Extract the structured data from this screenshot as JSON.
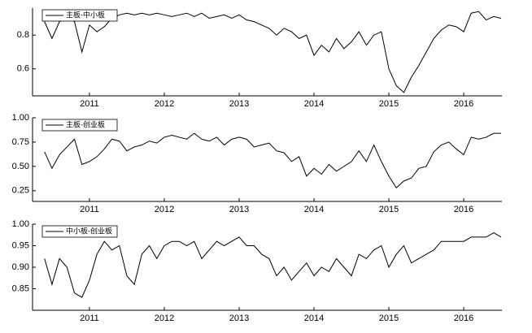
{
  "chart_data": [
    {
      "type": "line",
      "legend": "upper left",
      "grid": false,
      "x": [
        2010.4,
        2010.5,
        2010.6,
        2010.7,
        2010.8,
        2010.9,
        2011.0,
        2011.1,
        2011.2,
        2011.3,
        2011.4,
        2011.5,
        2011.6,
        2011.7,
        2011.8,
        2011.9,
        2012.0,
        2012.1,
        2012.2,
        2012.3,
        2012.4,
        2012.5,
        2012.6,
        2012.7,
        2012.8,
        2012.9,
        2013.0,
        2013.1,
        2013.2,
        2013.3,
        2013.4,
        2013.5,
        2013.6,
        2013.7,
        2013.8,
        2013.9,
        2014.0,
        2014.1,
        2014.2,
        2014.3,
        2014.4,
        2014.5,
        2014.6,
        2014.7,
        2014.8,
        2014.9,
        2015.0,
        2015.1,
        2015.2,
        2015.3,
        2015.4,
        2015.5,
        2015.6,
        2015.7,
        2015.8,
        2015.9,
        2016.0,
        2016.1,
        2016.2,
        2016.3,
        2016.4,
        2016.5
      ],
      "series": [
        {
          "name": "主板-中小板",
          "color": "#000000",
          "values": [
            0.88,
            0.78,
            0.88,
            0.9,
            0.88,
            0.7,
            0.86,
            0.82,
            0.85,
            0.9,
            0.92,
            0.93,
            0.92,
            0.93,
            0.92,
            0.93,
            0.92,
            0.91,
            0.92,
            0.93,
            0.91,
            0.93,
            0.9,
            0.91,
            0.92,
            0.9,
            0.92,
            0.89,
            0.88,
            0.86,
            0.84,
            0.8,
            0.84,
            0.82,
            0.78,
            0.8,
            0.68,
            0.74,
            0.7,
            0.78,
            0.72,
            0.76,
            0.82,
            0.74,
            0.8,
            0.82,
            0.6,
            0.5,
            0.46,
            0.55,
            0.62,
            0.7,
            0.78,
            0.83,
            0.86,
            0.85,
            0.82,
            0.93,
            0.94,
            0.89,
            0.91,
            0.9
          ]
        }
      ],
      "xlim": [
        2010.24,
        2016.51
      ],
      "xticks": [
        2011,
        2012,
        2013,
        2014,
        2015,
        2016
      ],
      "ylim": [
        0.44,
        0.96
      ],
      "yticks": [
        0.6,
        0.8
      ]
    },
    {
      "type": "line",
      "legend": "upper left",
      "grid": false,
      "x": [
        2010.4,
        2010.5,
        2010.6,
        2010.7,
        2010.8,
        2010.9,
        2011.0,
        2011.1,
        2011.2,
        2011.3,
        2011.4,
        2011.5,
        2011.6,
        2011.7,
        2011.8,
        2011.9,
        2012.0,
        2012.1,
        2012.2,
        2012.3,
        2012.4,
        2012.5,
        2012.6,
        2012.7,
        2012.8,
        2012.9,
        2013.0,
        2013.1,
        2013.2,
        2013.3,
        2013.4,
        2013.5,
        2013.6,
        2013.7,
        2013.8,
        2013.9,
        2014.0,
        2014.1,
        2014.2,
        2014.3,
        2014.4,
        2014.5,
        2014.6,
        2014.7,
        2014.8,
        2014.9,
        2015.0,
        2015.1,
        2015.2,
        2015.3,
        2015.4,
        2015.5,
        2015.6,
        2015.7,
        2015.8,
        2015.9,
        2016.0,
        2016.1,
        2016.2,
        2016.3,
        2016.4,
        2016.5
      ],
      "series": [
        {
          "name": "主板-创业板",
          "color": "#000000",
          "values": [
            0.65,
            0.48,
            0.62,
            0.7,
            0.78,
            0.52,
            0.55,
            0.6,
            0.68,
            0.78,
            0.76,
            0.66,
            0.7,
            0.72,
            0.76,
            0.74,
            0.8,
            0.82,
            0.8,
            0.78,
            0.84,
            0.78,
            0.76,
            0.8,
            0.72,
            0.78,
            0.8,
            0.78,
            0.7,
            0.72,
            0.74,
            0.66,
            0.64,
            0.55,
            0.6,
            0.4,
            0.48,
            0.42,
            0.52,
            0.45,
            0.5,
            0.55,
            0.66,
            0.55,
            0.72,
            0.55,
            0.4,
            0.28,
            0.35,
            0.38,
            0.48,
            0.5,
            0.65,
            0.72,
            0.75,
            0.68,
            0.62,
            0.8,
            0.78,
            0.8,
            0.84,
            0.84
          ]
        }
      ],
      "xlim": [
        2010.24,
        2016.51
      ],
      "xticks": [
        2011,
        2012,
        2013,
        2014,
        2015,
        2016
      ],
      "ylim": [
        0.14,
        1.0
      ],
      "yticks": [
        {
          "value": 1.0,
          "label": "1.00"
        },
        0.75,
        {
          "value": 0.5,
          "label": "0.50"
        },
        0.25
      ]
    },
    {
      "type": "line",
      "legend": "upper left",
      "grid": false,
      "x": [
        2010.4,
        2010.5,
        2010.6,
        2010.7,
        2010.8,
        2010.9,
        2011.0,
        2011.1,
        2011.2,
        2011.3,
        2011.4,
        2011.5,
        2011.6,
        2011.7,
        2011.8,
        2011.9,
        2012.0,
        2012.1,
        2012.2,
        2012.3,
        2012.4,
        2012.5,
        2012.6,
        2012.7,
        2012.8,
        2012.9,
        2013.0,
        2013.1,
        2013.2,
        2013.3,
        2013.4,
        2013.5,
        2013.6,
        2013.7,
        2013.8,
        2013.9,
        2014.0,
        2014.1,
        2014.2,
        2014.3,
        2014.4,
        2014.5,
        2014.6,
        2014.7,
        2014.8,
        2014.9,
        2015.0,
        2015.1,
        2015.2,
        2015.3,
        2015.4,
        2015.5,
        2015.6,
        2015.7,
        2015.8,
        2015.9,
        2016.0,
        2016.1,
        2016.2,
        2016.3,
        2016.4,
        2016.5
      ],
      "series": [
        {
          "name": "中小板-创业板",
          "color": "#000000",
          "values": [
            0.92,
            0.86,
            0.92,
            0.9,
            0.84,
            0.83,
            0.87,
            0.93,
            0.96,
            0.94,
            0.95,
            0.88,
            0.86,
            0.93,
            0.95,
            0.92,
            0.95,
            0.96,
            0.96,
            0.95,
            0.96,
            0.92,
            0.94,
            0.96,
            0.95,
            0.96,
            0.97,
            0.95,
            0.95,
            0.93,
            0.92,
            0.88,
            0.9,
            0.87,
            0.89,
            0.91,
            0.88,
            0.9,
            0.89,
            0.92,
            0.9,
            0.88,
            0.93,
            0.92,
            0.94,
            0.95,
            0.9,
            0.93,
            0.95,
            0.91,
            0.92,
            0.93,
            0.94,
            0.96,
            0.96,
            0.96,
            0.96,
            0.97,
            0.97,
            0.97,
            0.98,
            0.97
          ]
        }
      ],
      "xlim": [
        2010.24,
        2016.51
      ],
      "xticks": [
        2011,
        2012,
        2013,
        2014,
        2015,
        2016
      ],
      "ylim": [
        0.8,
        1.0
      ],
      "yticks": [
        {
          "value": 1.0,
          "label": "1.00"
        },
        0.95,
        {
          "value": 0.9,
          "label": "0.90"
        },
        0.85
      ]
    }
  ]
}
